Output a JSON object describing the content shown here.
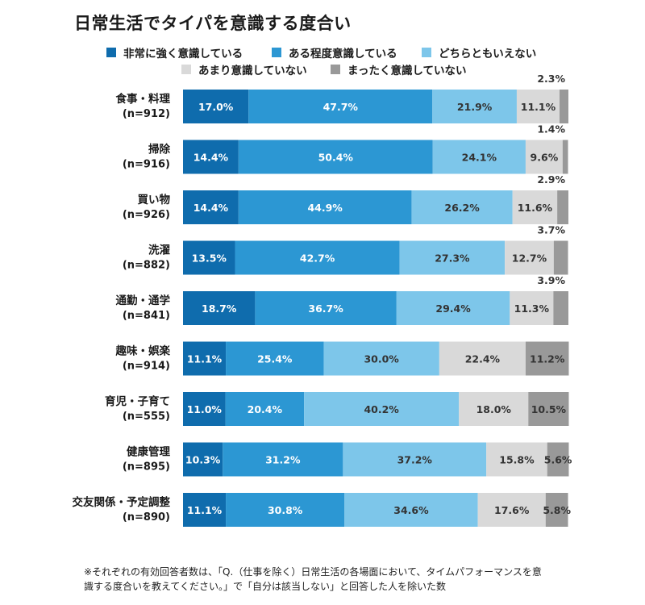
{
  "chart_data": {
    "type": "bar",
    "orientation": "horizontal",
    "stacked": true,
    "percent": true,
    "title": "日常生活でタイパを意識する度合い",
    "xlim": [
      0,
      100
    ],
    "grid": false,
    "legend_position": "top",
    "categories": [
      {
        "name": "食事・料理",
        "n": "(n=912)"
      },
      {
        "name": "掃除",
        "n": "(n=916)"
      },
      {
        "name": "買い物",
        "n": "(n=926)"
      },
      {
        "name": "洗濯",
        "n": "(n=882)"
      },
      {
        "name": "通勤・通学",
        "n": "(n=841)"
      },
      {
        "name": "趣味・娯楽",
        "n": "(n=914)"
      },
      {
        "name": "育児・子育て",
        "n": "(n=555)"
      },
      {
        "name": "健康管理",
        "n": "(n=895)"
      },
      {
        "name": "交友関係・予定調整",
        "n": "(n=890)"
      }
    ],
    "series": [
      {
        "name": "非常に強く意識している",
        "color": "#0f6cad",
        "values": [
          17.0,
          14.4,
          14.4,
          13.5,
          18.7,
          11.1,
          11.0,
          10.3,
          11.1
        ]
      },
      {
        "name": "ある程度意識している",
        "color": "#2c97d3",
        "values": [
          47.7,
          50.4,
          44.9,
          42.7,
          36.7,
          25.4,
          20.4,
          31.2,
          30.8
        ]
      },
      {
        "name": "どちらともいえない",
        "color": "#7dc6ea",
        "values": [
          21.9,
          24.1,
          26.2,
          27.3,
          29.4,
          30.0,
          40.2,
          37.2,
          34.6
        ]
      },
      {
        "name": "あまり意識していない",
        "color": "#d9d9d9",
        "values": [
          11.1,
          9.6,
          11.6,
          12.7,
          11.3,
          22.4,
          18.0,
          15.8,
          17.6
        ]
      },
      {
        "name": "まったく意識していない",
        "color": "#999999",
        "values": [
          2.3,
          1.4,
          2.9,
          3.7,
          3.9,
          11.2,
          10.5,
          5.6,
          5.8
        ]
      }
    ],
    "labels": [
      [
        "17.0%",
        "47.7%",
        "21.9%",
        "11.1%",
        "2.3%"
      ],
      [
        "14.4%",
        "50.4%",
        "24.1%",
        "9.6%",
        "1.4%"
      ],
      [
        "14.4%",
        "44.9%",
        "26.2%",
        "11.6%",
        "2.9%"
      ],
      [
        "13.5%",
        "42.7%",
        "27.3%",
        "12.7%",
        "3.7%"
      ],
      [
        "18.7%",
        "36.7%",
        "29.4%",
        "11.3%",
        "3.9%"
      ],
      [
        "11.1%",
        "25.4%",
        "30.0%",
        "22.4%",
        "11.2%"
      ],
      [
        "11.0%",
        "20.4%",
        "40.2%",
        "18.0%",
        "10.5%"
      ],
      [
        "10.3%",
        "31.2%",
        "37.2%",
        "15.8%",
        "5.6%"
      ],
      [
        "11.1%",
        "30.8%",
        "34.6%",
        "17.6%",
        "5.8%"
      ]
    ],
    "label_text_colors": [
      "#ffffff",
      "#ffffff",
      "#333333",
      "#333333",
      "#333333"
    ]
  },
  "footnote": {
    "line1": "※それぞれの有効回答者数は、「Q.（仕事を除く）日常生活の各場面において、タイムパフォーマンスを意",
    "line2": "識する度合いを教えてください。」で「自分は該当しない」と回答した人を除いた数"
  }
}
